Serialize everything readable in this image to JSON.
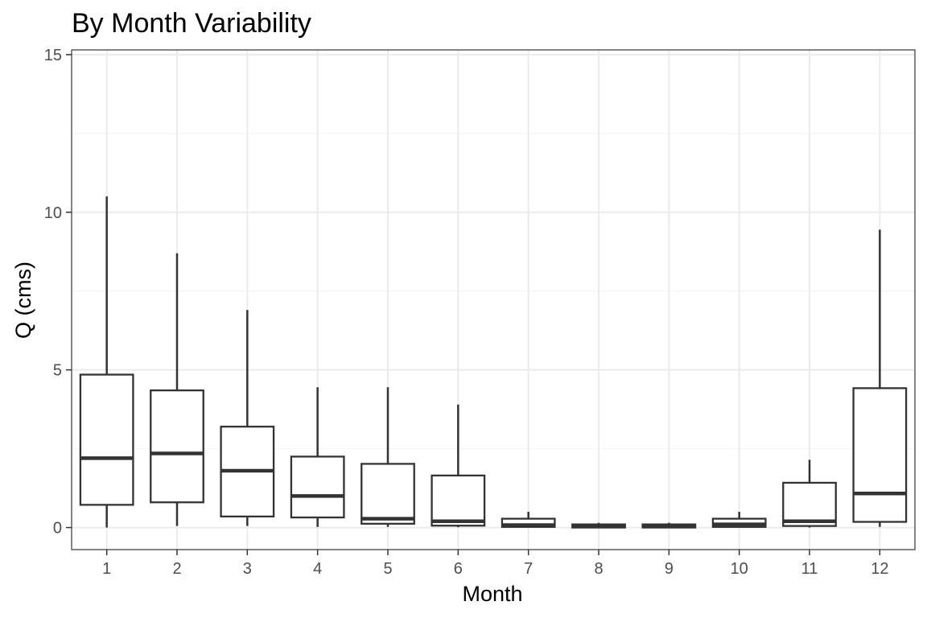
{
  "chart_data": {
    "type": "boxplot",
    "title": "By Month Variability",
    "xlabel": "Month",
    "ylabel": "Q (cms)",
    "categories": [
      "1",
      "2",
      "3",
      "4",
      "5",
      "6",
      "7",
      "8",
      "9",
      "10",
      "11",
      "12"
    ],
    "y_ticks": [
      0,
      5,
      10,
      15
    ],
    "ylim": [
      -0.7,
      15.15
    ],
    "grid": true,
    "boxes": [
      {
        "month": "1",
        "min": 0.0,
        "q1": 0.72,
        "median": 2.2,
        "q3": 4.85,
        "max": 10.5
      },
      {
        "month": "2",
        "min": 0.05,
        "q1": 0.8,
        "median": 2.35,
        "q3": 4.35,
        "max": 8.7
      },
      {
        "month": "3",
        "min": 0.05,
        "q1": 0.35,
        "median": 1.8,
        "q3": 3.2,
        "max": 6.9
      },
      {
        "month": "4",
        "min": 0.02,
        "q1": 0.32,
        "median": 1.0,
        "q3": 2.25,
        "max": 4.45
      },
      {
        "month": "5",
        "min": 0.02,
        "q1": 0.12,
        "median": 0.28,
        "q3": 2.02,
        "max": 4.45
      },
      {
        "month": "6",
        "min": 0.01,
        "q1": 0.06,
        "median": 0.2,
        "q3": 1.65,
        "max": 3.9
      },
      {
        "month": "7",
        "min": 0.0,
        "q1": 0.02,
        "median": 0.08,
        "q3": 0.28,
        "max": 0.5
      },
      {
        "month": "8",
        "min": 0.0,
        "q1": 0.0,
        "median": 0.04,
        "q3": 0.1,
        "max": 0.15
      },
      {
        "month": "9",
        "min": 0.0,
        "q1": 0.0,
        "median": 0.04,
        "q3": 0.1,
        "max": 0.15
      },
      {
        "month": "10",
        "min": 0.0,
        "q1": 0.02,
        "median": 0.1,
        "q3": 0.28,
        "max": 0.5
      },
      {
        "month": "11",
        "min": 0.0,
        "q1": 0.05,
        "median": 0.2,
        "q3": 1.42,
        "max": 2.15
      },
      {
        "month": "12",
        "min": 0.02,
        "q1": 0.18,
        "median": 1.08,
        "q3": 4.42,
        "max": 9.45
      }
    ],
    "colors": {
      "box_stroke": "#333333",
      "box_fill": "#ffffff",
      "grid_major": "#ebebeb",
      "grid_minor": "#f2f2f2",
      "panel_border": "#333333",
      "tick_text": "#4d4d4d"
    }
  }
}
